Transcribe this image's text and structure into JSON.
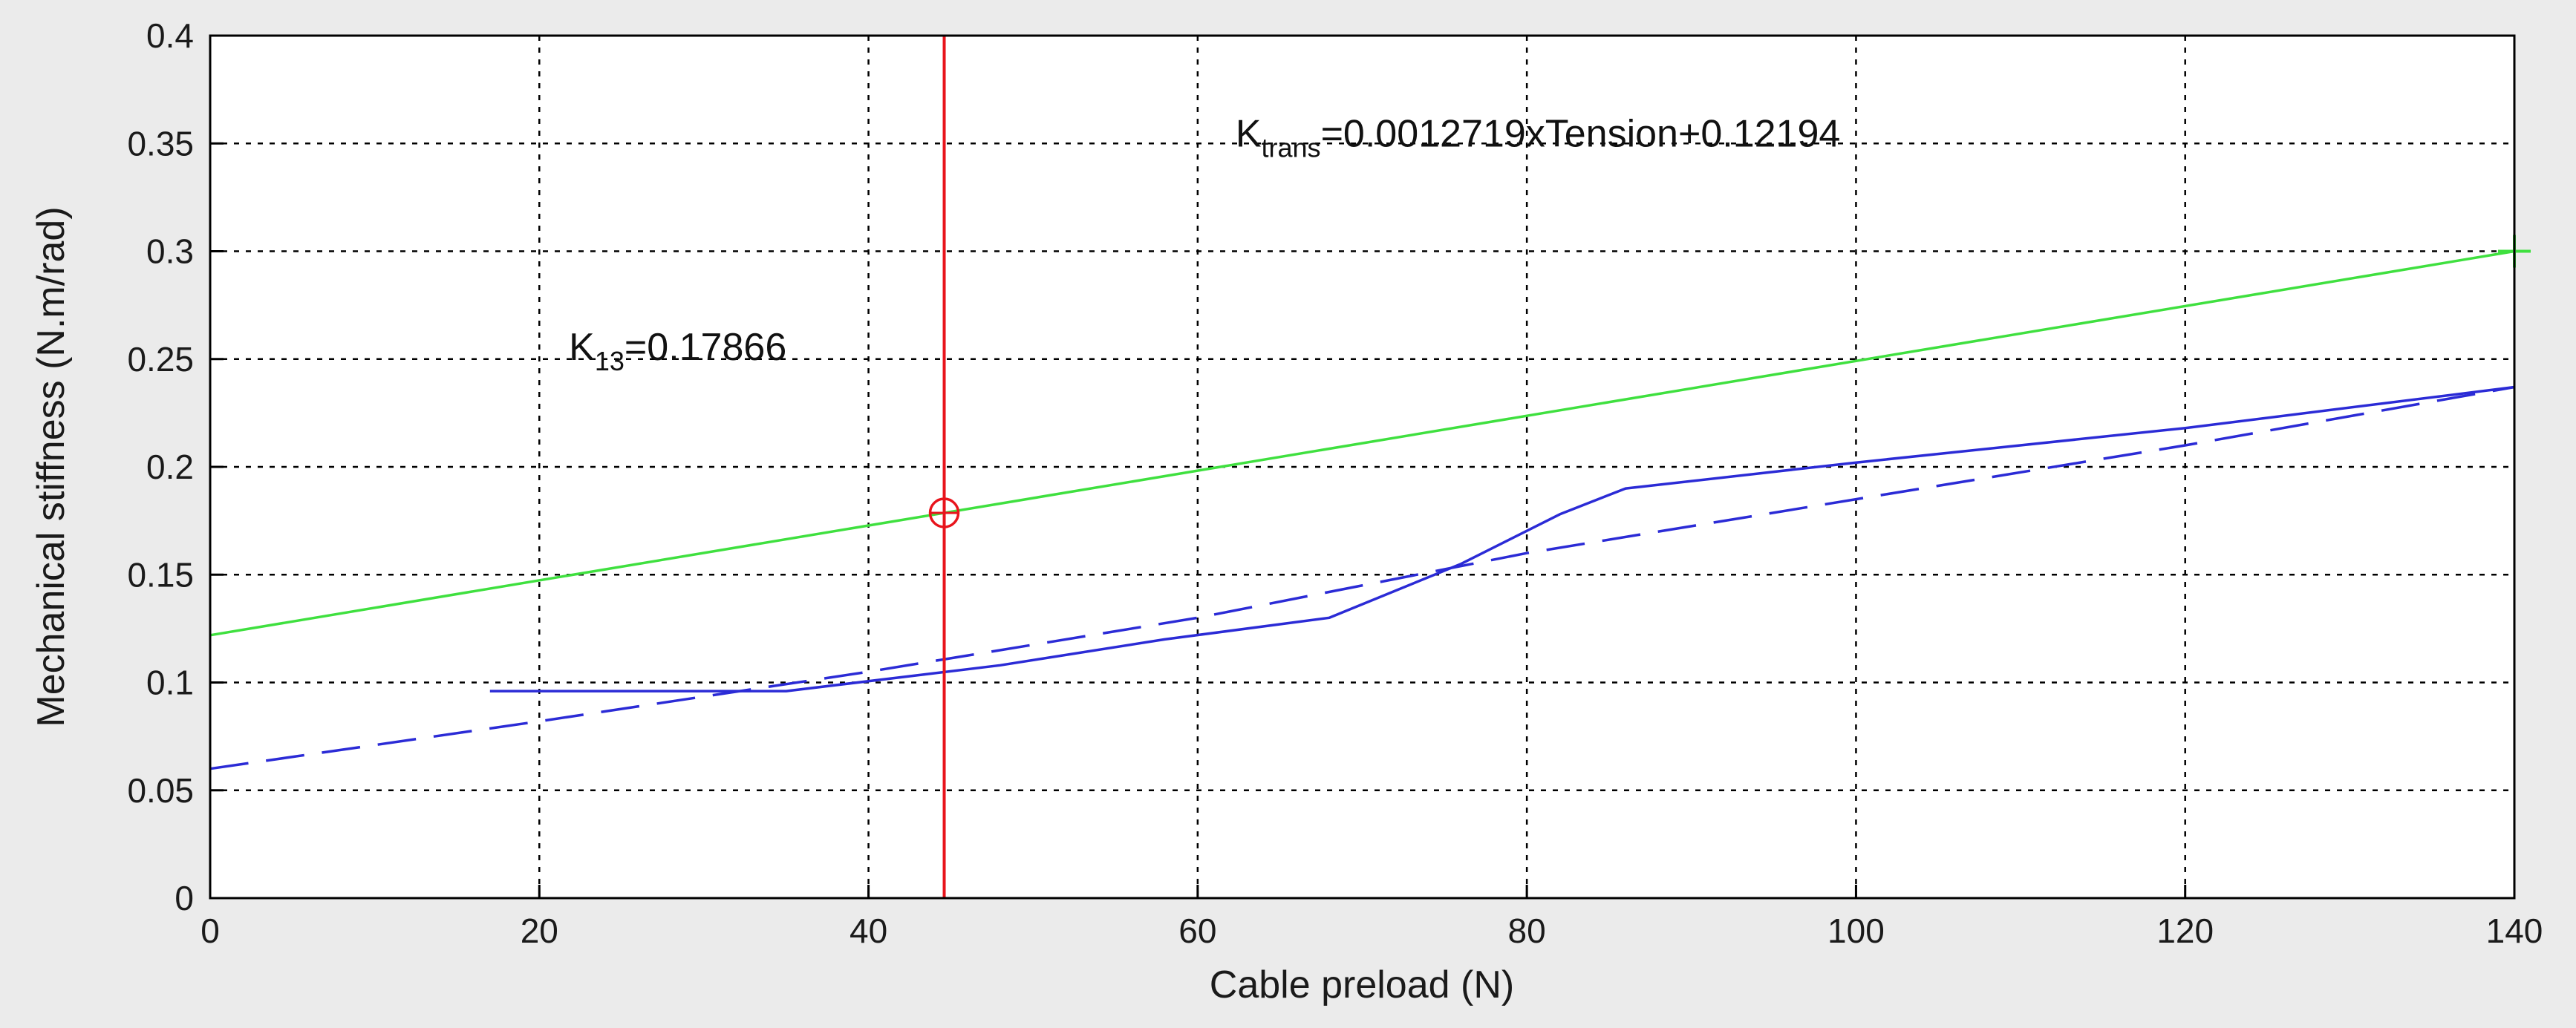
{
  "chart_data": {
    "type": "line",
    "xlabel": "Cable preload (N)",
    "ylabel": "Mechanical stiffness (N.m/rad)",
    "xlim": [
      0,
      140
    ],
    "ylim": [
      0,
      0.4
    ],
    "xticks": [
      0,
      20,
      40,
      60,
      80,
      100,
      120,
      140
    ],
    "yticks": [
      0,
      0.05,
      0.1,
      0.15,
      0.2,
      0.25,
      0.3,
      0.35,
      0.4
    ],
    "xtick_labels": [
      "0",
      "20",
      "40",
      "60",
      "80",
      "100",
      "120",
      "140"
    ],
    "ytick_labels": [
      "0",
      "0.05",
      "0.1",
      "0.15",
      "0.2",
      "0.25",
      "0.3",
      "0.35",
      "0.4"
    ],
    "grid": true,
    "series": [
      {
        "style": "solid",
        "color": "#2b2bd6",
        "x": [
          17,
          35,
          48,
          58,
          68,
          76,
          82,
          86,
          100,
          120,
          140
        ],
        "y": [
          0.096,
          0.096,
          0.108,
          0.12,
          0.13,
          0.155,
          0.178,
          0.19,
          0.202,
          0.218,
          0.237
        ]
      },
      {
        "style": "dashed",
        "color": "#2b2bd6",
        "x": [
          0,
          20,
          40,
          60,
          80,
          100,
          120,
          140
        ],
        "y": [
          0.06,
          0.082,
          0.105,
          0.13,
          0.16,
          0.185,
          0.21,
          0.237
        ]
      },
      {
        "style": "solid",
        "color": "#3fe03f",
        "x": [
          0,
          140
        ],
        "y": [
          0.12194,
          0.3
        ]
      }
    ],
    "vline": {
      "x": 44.6,
      "color": "#e8141c"
    },
    "marker": {
      "x": 44.6,
      "y": 0.17866,
      "color": "#e8141c"
    },
    "end_marker": {
      "x": 140,
      "y": 0.3,
      "color": "#3fe03f"
    },
    "annotations": [
      {
        "id": "k13",
        "main": "K",
        "sub": "13",
        "rest": "=0.17866",
        "x": 21.8,
        "y": 0.2495
      },
      {
        "id": "ktrans",
        "main": "K",
        "sub": "trans",
        "rest": "=0.0012719xTension+0.12194",
        "x": 62.3,
        "y": 0.3485
      }
    ]
  }
}
